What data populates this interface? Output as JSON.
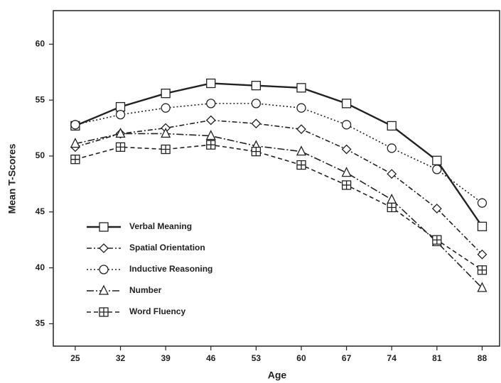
{
  "chart_data": {
    "type": "line",
    "x_label": "Age",
    "y_label": "Mean T-Scores",
    "x": [
      25,
      32,
      39,
      46,
      53,
      60,
      67,
      74,
      81,
      88
    ],
    "xlim": [
      21.6,
      90.7
    ],
    "xticks": [
      25,
      32,
      39,
      46,
      53,
      60,
      67,
      74,
      81,
      88
    ],
    "ylim": [
      33,
      63
    ],
    "yticks": [
      35,
      40,
      45,
      50,
      55,
      60
    ],
    "legend": "lower left",
    "series": [
      {
        "name": "Verbal Meaning",
        "color": "#222222",
        "marker": "square",
        "dash": "solid",
        "values": [
          52.7,
          54.4,
          55.6,
          56.5,
          56.3,
          56.1,
          54.7,
          52.7,
          49.6,
          43.7
        ]
      },
      {
        "name": "Spatial Orientation",
        "color": "#222222",
        "marker": "diamond",
        "dash": "dashdot",
        "values": [
          50.8,
          52.0,
          52.5,
          53.2,
          52.9,
          52.4,
          50.6,
          48.4,
          45.3,
          41.2
        ]
      },
      {
        "name": "Inductive Reasoning",
        "color": "#222222",
        "marker": "circle",
        "dash": "dotted",
        "values": [
          52.8,
          53.7,
          54.3,
          54.7,
          54.7,
          54.3,
          52.8,
          50.7,
          48.8,
          45.8
        ]
      },
      {
        "name": "Number",
        "color": "#222222",
        "marker": "triangle",
        "dash": "longdashdot",
        "values": [
          51.1,
          52.0,
          52.0,
          51.8,
          50.9,
          50.4,
          48.5,
          46.1,
          42.3,
          38.2
        ]
      },
      {
        "name": "Word Fluency",
        "color": "#222222",
        "marker": "squareplus",
        "dash": "dashed",
        "values": [
          49.7,
          50.8,
          50.6,
          51.0,
          50.4,
          49.2,
          47.4,
          45.4,
          42.5,
          39.8
        ]
      }
    ]
  }
}
